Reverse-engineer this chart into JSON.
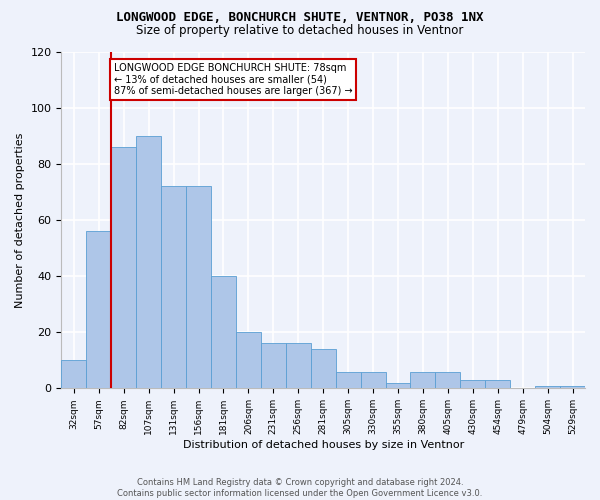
{
  "title": "LONGWOOD EDGE, BONCHURCH SHUTE, VENTNOR, PO38 1NX",
  "subtitle": "Size of property relative to detached houses in Ventnor",
  "xlabel": "Distribution of detached houses by size in Ventnor",
  "ylabel": "Number of detached properties",
  "bar_values": [
    10,
    56,
    86,
    90,
    72,
    72,
    40,
    20,
    16,
    16,
    14,
    6,
    6,
    2,
    6,
    6,
    3,
    3,
    0,
    1,
    1
  ],
  "bin_labels": [
    "32sqm",
    "57sqm",
    "82sqm",
    "107sqm",
    "131sqm",
    "156sqm",
    "181sqm",
    "206sqm",
    "231sqm",
    "256sqm",
    "281sqm",
    "305sqm",
    "330sqm",
    "355sqm",
    "380sqm",
    "405sqm",
    "430sqm",
    "454sqm",
    "479sqm",
    "504sqm",
    "529sqm"
  ],
  "bar_color": "#aec6e8",
  "bar_edge_color": "#5a9fd4",
  "vline_color": "#cc0000",
  "annotation_text": "LONGWOOD EDGE BONCHURCH SHUTE: 78sqm\n← 13% of detached houses are smaller (54)\n87% of semi-detached houses are larger (367) →",
  "annotation_box_color": "white",
  "annotation_box_edge": "#cc0000",
  "ylim": [
    0,
    120
  ],
  "yticks": [
    0,
    20,
    40,
    60,
    80,
    100,
    120
  ],
  "background_color": "#eef2fb",
  "footer_text": "Contains HM Land Registry data © Crown copyright and database right 2024.\nContains public sector information licensed under the Open Government Licence v3.0.",
  "title_fontsize": 9,
  "subtitle_fontsize": 8.5
}
